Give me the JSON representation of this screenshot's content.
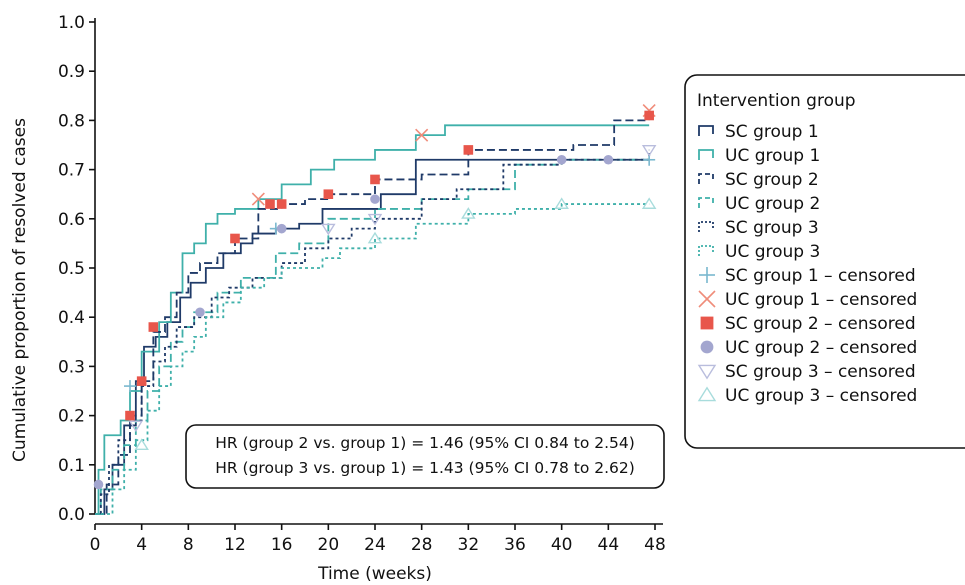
{
  "chart_data": {
    "type": "line",
    "subtype": "kaplan-meier-cumulative-incidence",
    "xlabel": "Time (weeks)",
    "ylabel": "Cumulative proportion of resolved cases",
    "xlim": [
      0,
      48
    ],
    "ylim": [
      0,
      1.0
    ],
    "xticks": [
      0,
      4,
      8,
      12,
      16,
      20,
      24,
      28,
      32,
      36,
      40,
      44,
      48
    ],
    "xtick_labels": [
      "0",
      "4",
      "8",
      "12",
      "16",
      "20",
      "24",
      "28",
      "32",
      "36",
      "40",
      "44",
      "48"
    ],
    "yticks": [
      0,
      0.1,
      0.2,
      0.3,
      0.4,
      0.5,
      0.6,
      0.7,
      0.8,
      0.9,
      1.0
    ],
    "ytick_labels": [
      "0.0",
      "0.1",
      "0.2",
      "0.3",
      "0.4",
      "0.5",
      "0.6",
      "0.7",
      "0.8",
      "0.9",
      "1.0"
    ],
    "grid": false,
    "legend": {
      "title": "Intervention group",
      "placement": "right"
    },
    "annotation": [
      "HR (group 2 vs. group 1) = 1.46 (95% CI 0.84 to 2.54)",
      "HR (group 3 vs. group 1) = 1.43 (95% CI 0.78 to 2.62)"
    ],
    "series": [
      {
        "name": "SC group 1",
        "color": "#1f3a68",
        "dash": "solid",
        "x": [
          0,
          0.8,
          1.5,
          2.5,
          3.5,
          4.2,
          5.2,
          6.2,
          7.3,
          8.2,
          9.5,
          11,
          12.5,
          13.5,
          15.5,
          17.5,
          19.5,
          24.5,
          27.5,
          32,
          40,
          47.5
        ],
        "y": [
          0,
          0.05,
          0.1,
          0.18,
          0.27,
          0.34,
          0.36,
          0.39,
          0.44,
          0.47,
          0.5,
          0.53,
          0.55,
          0.57,
          0.58,
          0.59,
          0.62,
          0.65,
          0.72,
          0.72,
          0.72,
          0.72
        ]
      },
      {
        "name": "UC group 1",
        "color": "#3fb0aa",
        "dash": "solid",
        "x": [
          0,
          0.3,
          0.8,
          2.2,
          3.0,
          4.0,
          5.5,
          6.5,
          7.5,
          8.5,
          9.5,
          10.5,
          12,
          14,
          16,
          18.5,
          20.5,
          24,
          27.5,
          30,
          32,
          47.5
        ],
        "y": [
          0,
          0.09,
          0.16,
          0.19,
          0.25,
          0.33,
          0.39,
          0.45,
          0.53,
          0.55,
          0.59,
          0.61,
          0.62,
          0.64,
          0.67,
          0.7,
          0.72,
          0.74,
          0.77,
          0.79,
          0.79,
          0.79
        ]
      },
      {
        "name": "SC group 2",
        "color": "#1f3a68",
        "dash": "dash",
        "x": [
          0,
          1.0,
          2.0,
          3.0,
          4.0,
          5.0,
          6.0,
          7.0,
          8.0,
          9.0,
          10.5,
          12.0,
          14.0,
          16.0,
          18.0,
          20.0,
          24.0,
          28.0,
          32.0,
          37.5,
          41.0,
          44.5,
          47.5
        ],
        "y": [
          0,
          0.06,
          0.12,
          0.2,
          0.27,
          0.37,
          0.4,
          0.45,
          0.49,
          0.51,
          0.53,
          0.56,
          0.62,
          0.63,
          0.64,
          0.65,
          0.68,
          0.69,
          0.74,
          0.74,
          0.75,
          0.8,
          0.81
        ]
      },
      {
        "name": "UC group 2",
        "color": "#3fb0aa",
        "dash": "dash",
        "x": [
          0,
          0.5,
          1.5,
          2.5,
          3.5,
          4.5,
          5.5,
          6.5,
          7.5,
          8.5,
          10.5,
          12.5,
          15.5,
          17.5,
          20,
          24,
          28,
          32,
          36,
          40,
          47.5
        ],
        "y": [
          0,
          0.05,
          0.09,
          0.14,
          0.19,
          0.25,
          0.3,
          0.35,
          0.38,
          0.41,
          0.45,
          0.48,
          0.53,
          0.55,
          0.6,
          0.62,
          0.64,
          0.66,
          0.71,
          0.72,
          0.73
        ]
      },
      {
        "name": "SC group 3",
        "color": "#1f3a68",
        "dash": "dot",
        "x": [
          0,
          0.5,
          1.2,
          2.0,
          3.0,
          4.0,
          5.0,
          6.0,
          7.0,
          8.5,
          10,
          11.5,
          13.5,
          16,
          18,
          20,
          22,
          24,
          28,
          31,
          35,
          40,
          47.5
        ],
        "y": [
          0,
          0.04,
          0.1,
          0.15,
          0.19,
          0.26,
          0.31,
          0.34,
          0.38,
          0.4,
          0.44,
          0.46,
          0.48,
          0.51,
          0.54,
          0.56,
          0.58,
          0.6,
          0.64,
          0.66,
          0.71,
          0.72,
          0.74
        ]
      },
      {
        "name": "UC group 3",
        "color": "#3fb0aa",
        "dash": "dot",
        "x": [
          0,
          1.5,
          2.5,
          3.5,
          4.5,
          5.5,
          6.5,
          7.5,
          8.5,
          9.5,
          11,
          12.5,
          14.5,
          16,
          19.5,
          21,
          24,
          27.5,
          32,
          36,
          40,
          47.5
        ],
        "y": [
          0,
          0.05,
          0.09,
          0.15,
          0.21,
          0.26,
          0.3,
          0.33,
          0.36,
          0.4,
          0.43,
          0.46,
          0.48,
          0.5,
          0.52,
          0.54,
          0.56,
          0.59,
          0.61,
          0.62,
          0.63,
          0.63
        ]
      }
    ],
    "censored": [
      {
        "name": "SC group 1 – censored",
        "color": "#7ab8cf",
        "marker": "plus",
        "x": [
          3.0,
          15.5,
          47.5
        ],
        "y": [
          0.26,
          0.58,
          0.72
        ]
      },
      {
        "name": "UC group 1 – censored",
        "color": "#f08c7a",
        "marker": "x",
        "x": [
          14.0,
          28.0,
          47.5
        ],
        "y": [
          0.64,
          0.77,
          0.82
        ]
      },
      {
        "name": "SC group 2 – censored",
        "color": "#e8564b",
        "marker": "square",
        "x": [
          3.0,
          4.0,
          5.0,
          12.0,
          15.0,
          16.0,
          20.0,
          24.0,
          32.0,
          47.5
        ],
        "y": [
          0.2,
          0.27,
          0.38,
          0.56,
          0.63,
          0.63,
          0.65,
          0.68,
          0.74,
          0.81
        ]
      },
      {
        "name": "UC group 2 – censored",
        "color": "#a3a6cf",
        "marker": "circle",
        "x": [
          0.3,
          9.0,
          16.0,
          24.0,
          40.0,
          44.0
        ],
        "y": [
          0.06,
          0.41,
          0.58,
          0.64,
          0.72,
          0.72
        ]
      },
      {
        "name": "SC group 3 – censored",
        "color": "#b9bddd",
        "marker": "triangle-down",
        "x": [
          3.5,
          20.0,
          24.0,
          47.5
        ],
        "y": [
          0.18,
          0.58,
          0.6,
          0.74
        ]
      },
      {
        "name": "UC group 3 – censored",
        "color": "#a8dcdc",
        "marker": "triangle-up",
        "x": [
          4.0,
          24.0,
          32.0,
          40.0,
          47.5
        ],
        "y": [
          0.14,
          0.56,
          0.61,
          0.63,
          0.63
        ]
      }
    ]
  }
}
